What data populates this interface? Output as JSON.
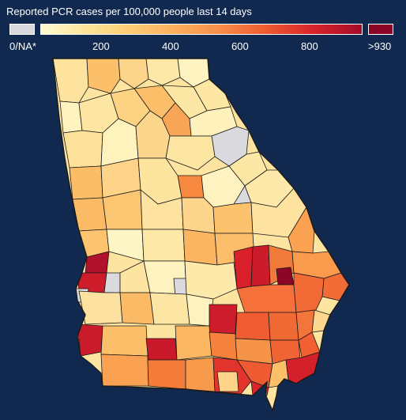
{
  "title": "Reported PCR cases per 100,000 people last 14 days",
  "legend": {
    "na_label": "0/NA*",
    "ticks": [
      "200",
      "400",
      "600",
      "800"
    ],
    "max_label": ">930",
    "colors": {
      "na": "#d9d9de",
      "low": "#fffbd0",
      "high": "#a40b2a",
      "max": "#8c0628",
      "background": "#12294f",
      "border": "#1a1a1a"
    }
  }
}
